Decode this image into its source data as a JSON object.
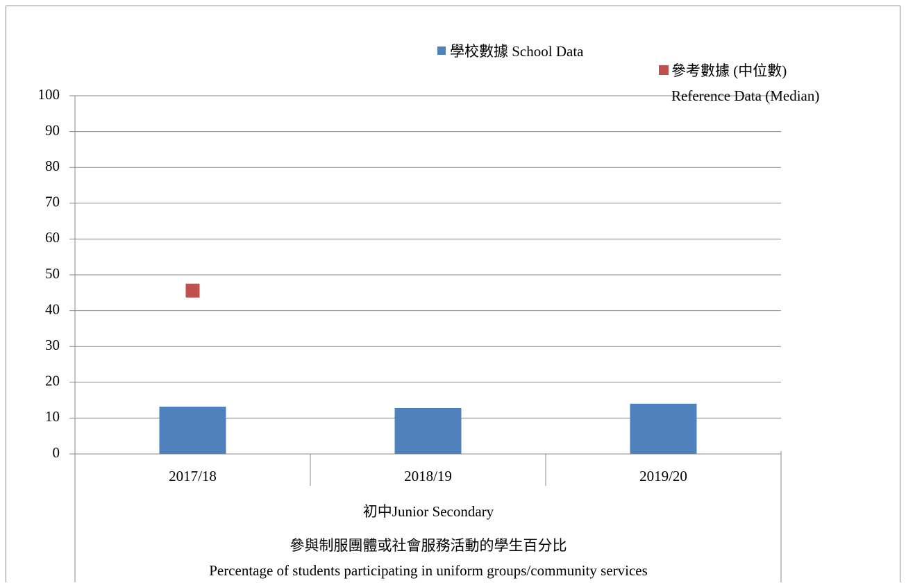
{
  "chart_data": {
    "type": "bar",
    "title": "參與制服團體或社會服務活動的學生百分比\nPercentage of students participating in uniform groups/community services",
    "group_label": "初中Junior Secondary",
    "categories": [
      "2017/18",
      "2018/19",
      "2019/20"
    ],
    "series": [
      {
        "name": "學校數據 School Data",
        "color": "#4f81bd",
        "type": "bar",
        "values": [
          13.2,
          12.8,
          14.0
        ]
      },
      {
        "name": "參考數據 (中位數)\nReference Data (Median)",
        "color": "#c0504d",
        "type": "marker",
        "values": [
          45.6,
          null,
          null
        ]
      }
    ],
    "ylim": [
      0,
      100
    ],
    "yticks": [
      0,
      10,
      20,
      30,
      40,
      50,
      60,
      70,
      80,
      90,
      100
    ],
    "grid": true
  }
}
